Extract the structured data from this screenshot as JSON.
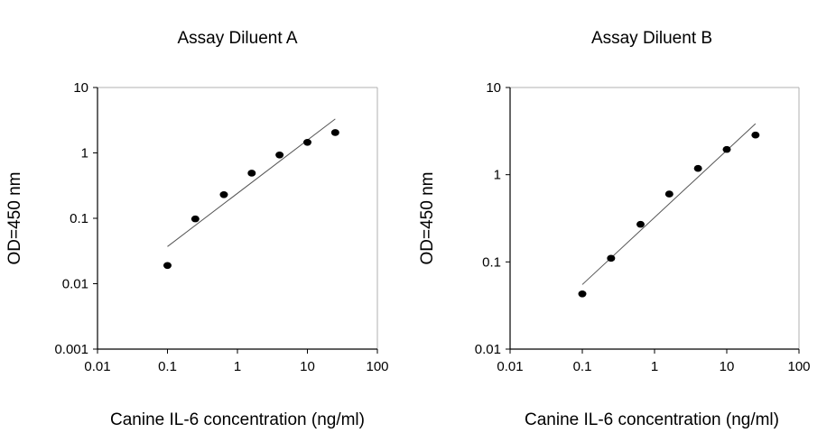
{
  "chart_data": [
    {
      "type": "scatter",
      "title": "Assay Diluent A",
      "xlabel": "Canine IL-6 concentration (ng/ml)",
      "ylabel": "OD=450 nm",
      "xscale": "log",
      "yscale": "log",
      "xlim": [
        0.01,
        100
      ],
      "ylim": [
        0.001,
        10
      ],
      "xticks": [
        "0.01",
        "0.1",
        "1",
        "10",
        "100"
      ],
      "yticks": [
        "0.001",
        "0.01",
        "0.1",
        "1",
        "10"
      ],
      "grid": false,
      "points": [
        {
          "x": 0.1,
          "y": 0.019
        },
        {
          "x": 0.25,
          "y": 0.098
        },
        {
          "x": 0.64,
          "y": 0.23
        },
        {
          "x": 1.6,
          "y": 0.49
        },
        {
          "x": 4.0,
          "y": 0.93
        },
        {
          "x": 10,
          "y": 1.45
        },
        {
          "x": 25,
          "y": 2.05
        }
      ],
      "fit_line": [
        {
          "x": 0.1,
          "y": 0.037
        },
        {
          "x": 25,
          "y": 3.3
        }
      ]
    },
    {
      "type": "scatter",
      "title": "Assay Diluent B",
      "xlabel": "Canine IL-6 concentration (ng/ml)",
      "ylabel": "OD=450 nm",
      "xscale": "log",
      "yscale": "log",
      "xlim": [
        0.01,
        100
      ],
      "ylim": [
        0.01,
        10
      ],
      "xticks": [
        "0.01",
        "0.1",
        "1",
        "10",
        "100"
      ],
      "yticks": [
        "0.01",
        "0.1",
        "1",
        "10"
      ],
      "grid": false,
      "points": [
        {
          "x": 0.1,
          "y": 0.043
        },
        {
          "x": 0.25,
          "y": 0.11
        },
        {
          "x": 0.64,
          "y": 0.27
        },
        {
          "x": 1.6,
          "y": 0.6
        },
        {
          "x": 4.0,
          "y": 1.18
        },
        {
          "x": 10,
          "y": 1.95
        },
        {
          "x": 25,
          "y": 2.85
        }
      ],
      "fit_line": [
        {
          "x": 0.1,
          "y": 0.055
        },
        {
          "x": 25,
          "y": 3.85
        }
      ]
    }
  ]
}
